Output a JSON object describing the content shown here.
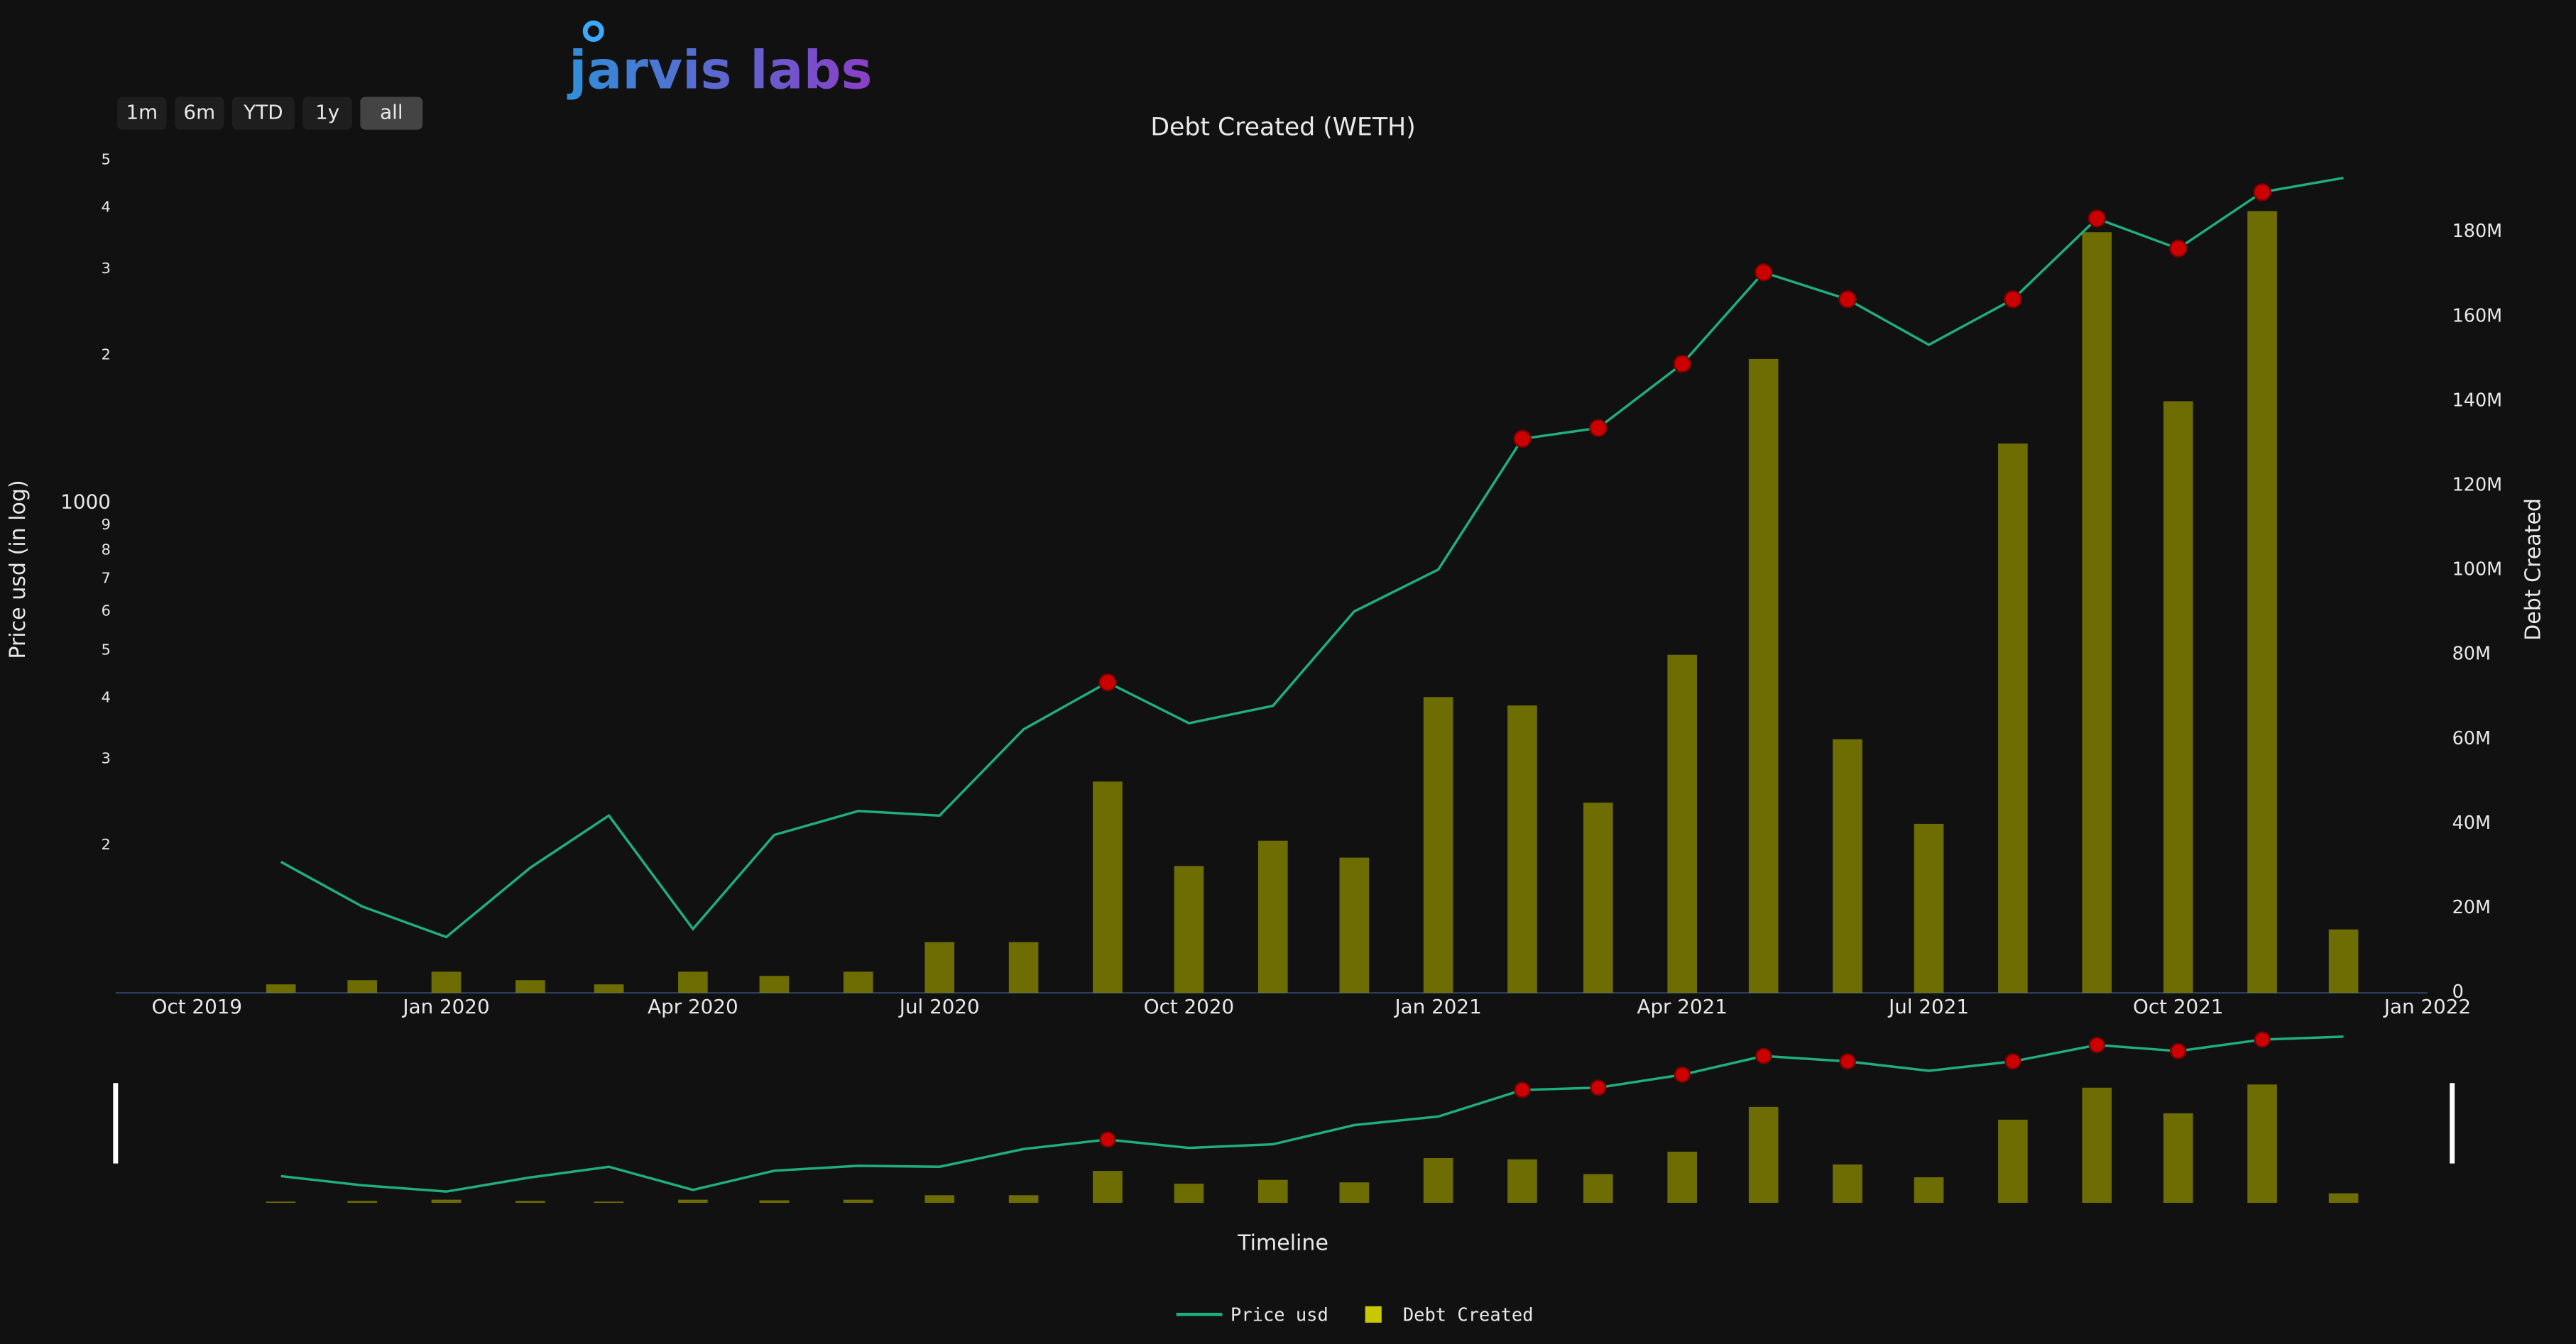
{
  "logo": "jarvis labs",
  "buttons": [
    "1m",
    "6m",
    "YTD",
    "1y",
    "all"
  ],
  "chart_data": {
    "type": "line",
    "title": "Debt Created (WETH)",
    "y_label": "Price usd (in log)",
    "y2_label": "Debt Created",
    "x_label": "Timeline",
    "y_scale": "log",
    "x": [
      "2019-11",
      "2019-12",
      "2020-01",
      "2020-02",
      "2020-03",
      "2020-04",
      "2020-05",
      "2020-06",
      "2020-07",
      "2020-08",
      "2020-09",
      "2020-10",
      "2020-11",
      "2020-12",
      "2021-01",
      "2021-02",
      "2021-03",
      "2021-04",
      "2021-05",
      "2021-06",
      "2021-07",
      "2021-08",
      "2021-09",
      "2021-10",
      "2021-11",
      "2021-12"
    ],
    "series": [
      {
        "name": "Price usd",
        "type": "line",
        "color": "#1fae7e",
        "values": [
          185,
          150,
          130,
          180,
          230,
          135,
          210,
          235,
          230,
          345,
          430,
          355,
          385,
          600,
          730,
          1350,
          1420,
          1920,
          2950,
          2600,
          2100,
          2600,
          3800,
          3300,
          4300,
          4600
        ]
      },
      {
        "name": "Debt Created",
        "type": "bar",
        "axis": "y2",
        "color": "#8c8c00",
        "values": [
          2000000,
          3000000,
          5000000,
          3000000,
          2000000,
          5000000,
          4000000,
          5000000,
          12000000,
          12000000,
          50000000,
          30000000,
          36000000,
          32000000,
          70000000,
          68000000,
          45000000,
          80000000,
          150000000,
          60000000,
          40000000,
          130000000,
          180000000,
          140000000,
          185000000,
          15000000
        ]
      }
    ],
    "markers": {
      "color": "#cc0000",
      "x": [
        "2020-09",
        "2021-02",
        "2021-03",
        "2021-04",
        "2021-05",
        "2021-06",
        "2021-08",
        "2021-09",
        "2021-10",
        "2021-11"
      ],
      "values": [
        430,
        1350,
        1420,
        1920,
        2950,
        2600,
        2600,
        3800,
        3300,
        4300
      ]
    },
    "xlim": [
      "2019-09",
      "2022-01"
    ],
    "xticks": [
      {
        "value": "2019-10",
        "label": "Oct 2019"
      },
      {
        "value": "2020-01",
        "label": "Jan 2020"
      },
      {
        "value": "2020-04",
        "label": "Apr 2020"
      },
      {
        "value": "2020-07",
        "label": "Jul 2020"
      },
      {
        "value": "2020-10",
        "label": "Oct 2020"
      },
      {
        "value": "2021-01",
        "label": "Jan 2021"
      },
      {
        "value": "2021-04",
        "label": "Apr 2021"
      },
      {
        "value": "2021-07",
        "label": "Jul 2021"
      },
      {
        "value": "2021-10",
        "label": "Oct 2021"
      },
      {
        "value": "2022-01",
        "label": "Jan 2022"
      }
    ],
    "ylim": [
      100,
      5300
    ],
    "yticks": [
      {
        "value": 200,
        "label": "2"
      },
      {
        "value": 300,
        "label": "3"
      },
      {
        "value": 400,
        "label": "4"
      },
      {
        "value": 500,
        "label": "5"
      },
      {
        "value": 600,
        "label": "6"
      },
      {
        "value": 700,
        "label": "7"
      },
      {
        "value": 800,
        "label": "8"
      },
      {
        "value": 900,
        "label": "9"
      },
      1000,
      {
        "value": 2000,
        "label": "2"
      },
      {
        "value": 3000,
        "label": "3"
      },
      {
        "value": 4000,
        "label": "4"
      },
      {
        "value": 5000,
        "label": "5"
      }
    ],
    "y2lim": [
      0,
      200000000
    ],
    "y2ticks": [
      0,
      {
        "value": 20000000,
        "label": "20M"
      },
      {
        "value": 40000000,
        "label": "40M"
      },
      {
        "value": 60000000,
        "label": "60M"
      },
      {
        "value": 80000000,
        "label": "80M"
      },
      {
        "value": 100000000,
        "label": "100M"
      },
      {
        "value": 120000000,
        "label": "120M"
      },
      {
        "value": 140000000,
        "label": "140M"
      },
      {
        "value": 160000000,
        "label": "160M"
      },
      {
        "value": 180000000,
        "label": "180M"
      }
    ],
    "legend": "bottom"
  }
}
